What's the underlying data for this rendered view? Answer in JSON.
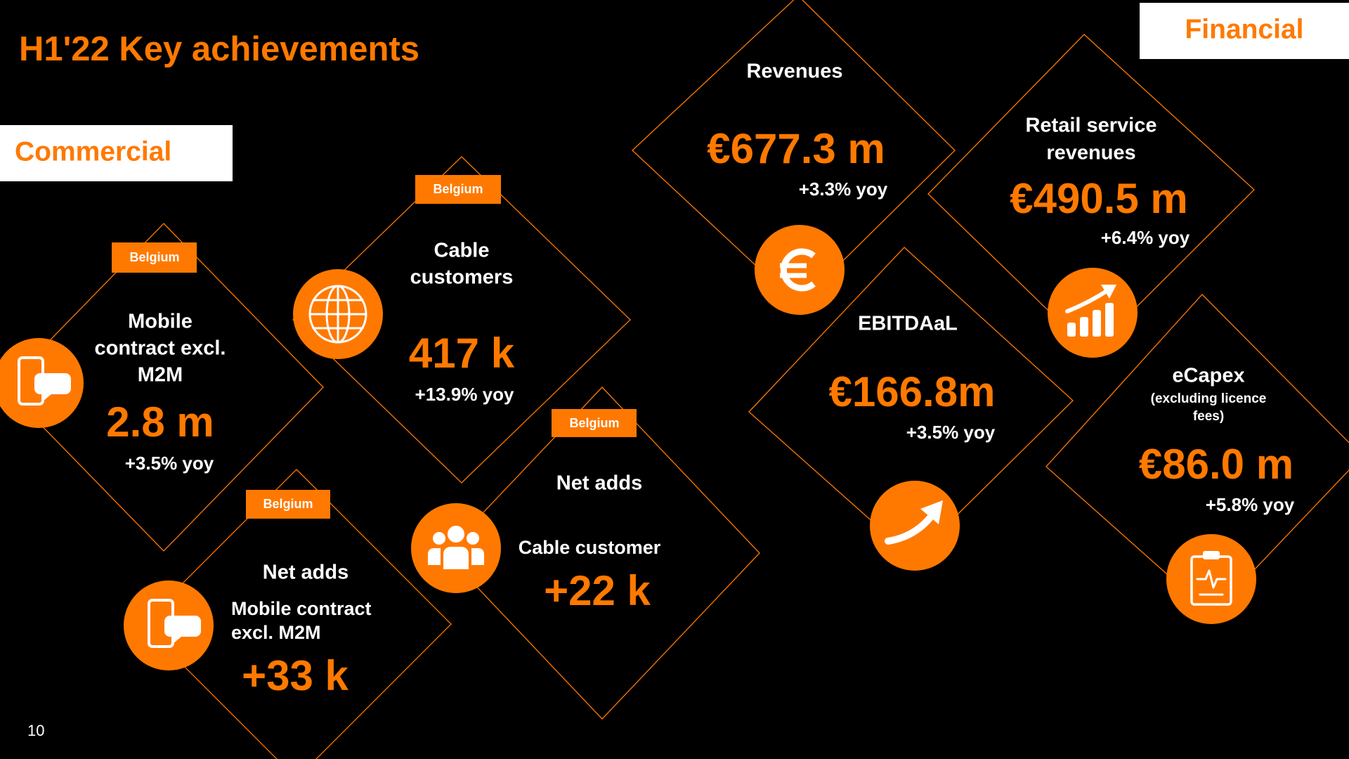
{
  "title": "H1'22 Key achievements",
  "sections": {
    "commercial": "Commercial",
    "financial": "Financial"
  },
  "commercial": [
    {
      "tag": "Belgium",
      "heading": [
        "Mobile",
        "contract excl.",
        "M2M"
      ],
      "value": "2.8 m",
      "change": "+3.5% yoy"
    },
    {
      "tag": "Belgium",
      "heading": [
        "Cable",
        "customers"
      ],
      "value": "417 k",
      "change": "+13.9% yoy"
    },
    {
      "tag": "Belgium",
      "heading": [
        "Net adds"
      ],
      "subheading": [
        "Cable customer"
      ],
      "value": "+22 k"
    },
    {
      "tag": "Belgium",
      "heading": [
        "Net adds"
      ],
      "subheading": [
        "Mobile contract",
        "excl. M2M"
      ],
      "value": "+33 k"
    }
  ],
  "financial": [
    {
      "heading": [
        "Revenues"
      ],
      "value": "€677.3 m",
      "change": "+3.3% yoy"
    },
    {
      "heading": [
        "Retail service",
        "revenues"
      ],
      "value": "€490.5 m",
      "change": "+6.4% yoy"
    },
    {
      "heading": [
        "EBITDAaL"
      ],
      "value": "€166.8m",
      "change": "+3.5% yoy"
    },
    {
      "heading": [
        "eCapex"
      ],
      "note": [
        "(excluding licence",
        "fees)"
      ],
      "value": "€86.0 m",
      "change": "+5.8% yoy"
    }
  ],
  "page_number": "10"
}
